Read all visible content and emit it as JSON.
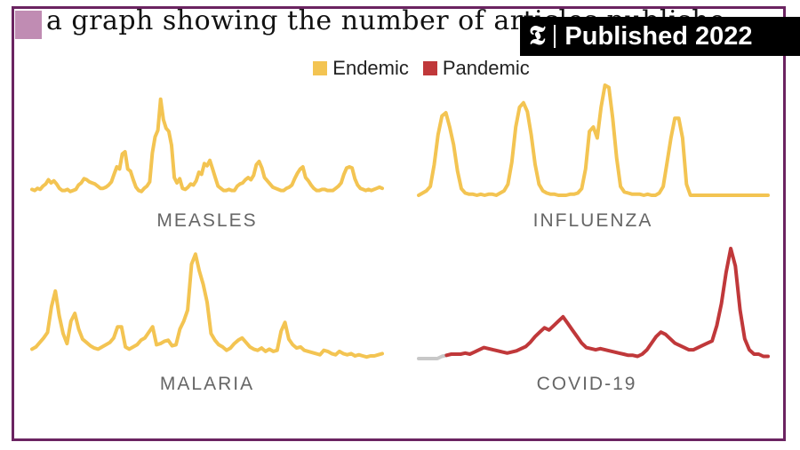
{
  "caption": "a graph showing the number of articles publishe",
  "badge": {
    "icon": "nyt-logo-icon",
    "text": "Published 2022"
  },
  "legend": [
    {
      "label": "Endemic",
      "color": "#f3c452"
    },
    {
      "label": "Pandemic",
      "color": "#c0383a"
    }
  ],
  "chart_data": [
    {
      "type": "line",
      "panel": "top-left",
      "label": "MEASLES",
      "color": "#f3c452",
      "ylim": [
        0,
        100
      ],
      "values": [
        3,
        2,
        4,
        3,
        6,
        8,
        12,
        9,
        11,
        8,
        4,
        2,
        2,
        3,
        1,
        2,
        3,
        7,
        9,
        13,
        12,
        10,
        9,
        8,
        6,
        4,
        4,
        5,
        7,
        10,
        17,
        24,
        22,
        36,
        38,
        22,
        20,
        12,
        5,
        2,
        1,
        4,
        6,
        10,
        37,
        52,
        58,
        87,
        68,
        60,
        57,
        44,
        14,
        9,
        13,
        4,
        3,
        5,
        8,
        7,
        11,
        19,
        17,
        27,
        25,
        30,
        22,
        14,
        6,
        4,
        2,
        2,
        3,
        2,
        2,
        6,
        8,
        9,
        12,
        14,
        12,
        16,
        26,
        29,
        23,
        14,
        11,
        8,
        5,
        4,
        3,
        2,
        2,
        4,
        5,
        7,
        13,
        18,
        22,
        24,
        14,
        11,
        7,
        4,
        2,
        2,
        3,
        3,
        2,
        2,
        2,
        4,
        6,
        9,
        17,
        23,
        24,
        23,
        13,
        7,
        4,
        3,
        2,
        3,
        2,
        3,
        4,
        5,
        4
      ]
    },
    {
      "type": "line",
      "panel": "top-right",
      "label": "INFLUENZA",
      "color": "#f3c452",
      "ylim": [
        0,
        100
      ],
      "values": [
        0,
        2,
        4,
        8,
        28,
        55,
        72,
        75,
        62,
        46,
        22,
        6,
        2,
        1,
        1,
        0,
        1,
        0,
        1,
        1,
        0,
        2,
        4,
        10,
        30,
        62,
        80,
        84,
        76,
        55,
        28,
        10,
        4,
        2,
        1,
        1,
        0,
        0,
        0,
        1,
        1,
        2,
        6,
        24,
        58,
        62,
        52,
        80,
        100,
        98,
        70,
        34,
        8,
        3,
        2,
        1,
        1,
        1,
        0,
        1,
        0,
        0,
        2,
        8,
        30,
        52,
        70,
        70,
        52,
        10,
        0,
        0,
        0,
        0,
        0,
        0,
        0,
        0,
        0,
        0,
        0,
        0,
        0,
        0,
        0,
        0,
        0,
        0,
        0,
        0,
        0
      ]
    },
    {
      "type": "line",
      "panel": "bottom-left",
      "label": "MALARIA",
      "color": "#f3c452",
      "ylim": [
        0,
        100
      ],
      "values": [
        10,
        12,
        16,
        20,
        25,
        48,
        62,
        40,
        24,
        15,
        35,
        42,
        28,
        19,
        16,
        13,
        11,
        10,
        12,
        14,
        16,
        20,
        30,
        30,
        12,
        10,
        12,
        14,
        18,
        20,
        25,
        30,
        14,
        15,
        17,
        18,
        13,
        14,
        28,
        35,
        45,
        86,
        95,
        80,
        68,
        52,
        24,
        18,
        14,
        12,
        9,
        11,
        15,
        18,
        20,
        16,
        12,
        10,
        9,
        11,
        8,
        10,
        8,
        9,
        26,
        34,
        19,
        14,
        11,
        12,
        9,
        8,
        7,
        6,
        5,
        9,
        8,
        6,
        5,
        8,
        6,
        5,
        6,
        4,
        5,
        4,
        3,
        4,
        4,
        5,
        6
      ]
    },
    {
      "type": "line",
      "panel": "bottom-right",
      "label": "COVID-19",
      "color": "#c0383a",
      "ylim": [
        0,
        100
      ],
      "values": [
        0,
        0,
        0,
        0,
        0,
        2,
        3,
        4,
        4,
        4,
        5,
        4,
        6,
        8,
        10,
        9,
        8,
        7,
        6,
        5,
        6,
        7,
        9,
        11,
        15,
        20,
        24,
        28,
        26,
        30,
        34,
        38,
        32,
        26,
        20,
        14,
        10,
        9,
        8,
        9,
        8,
        7,
        6,
        5,
        4,
        3,
        3,
        2,
        4,
        8,
        14,
        20,
        24,
        22,
        18,
        14,
        12,
        10,
        8,
        8,
        10,
        12,
        14,
        16,
        30,
        50,
        78,
        100,
        84,
        44,
        18,
        8,
        4,
        4,
        2,
        2
      ],
      "segments": [
        {
          "series": "gray-lead-in",
          "color": "#c8c8c8",
          "x_range": [
            0,
            6
          ]
        }
      ]
    }
  ]
}
